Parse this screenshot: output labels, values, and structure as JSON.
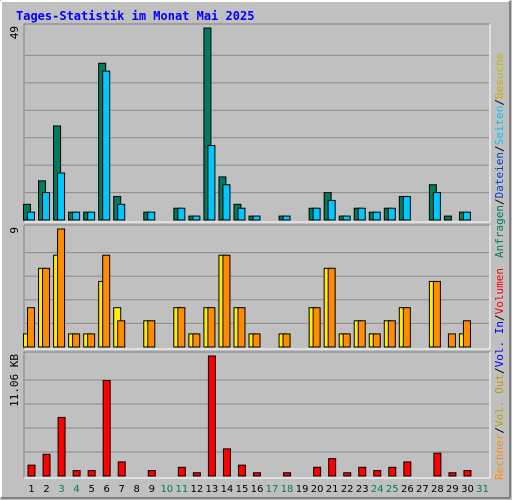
{
  "title": "Tages-Statistik im Monat Mai 2025",
  "colors": {
    "background": "#c0c0c0",
    "frame_dark": "#808080",
    "frame_light": "#ffffff",
    "grid": "#8a8a8a",
    "title": "#0000ff",
    "anfragen": "#007b5f",
    "dateien": "#00c8ff",
    "seiten": "#00c8ff",
    "besuche": "#ffee00",
    "rechner": "#ff8c00",
    "vol_out": "#d8c000",
    "vol_in": "#0000ff",
    "volumen": "#ff0000",
    "weekend_label": "#007b5f",
    "weekday_label": "#000000"
  },
  "right_legend": {
    "hits": [
      {
        "text": "Anfragen",
        "color": "#007b5f"
      },
      {
        "text": "Dateien",
        "color": "#0044cc"
      },
      {
        "text": "Seiten",
        "color": "#00c8ff"
      },
      {
        "text": "Besuche",
        "color": "#c8b400"
      }
    ],
    "visits": [
      {
        "text": "Rechner",
        "color": "#ff8c00"
      },
      {
        "text": "Vol. Out",
        "color": "#b8a000"
      },
      {
        "text": "Vol. In",
        "color": "#0000ff"
      },
      {
        "text": "Volumen",
        "color": "#ff0000"
      }
    ]
  },
  "chart_data": [
    {
      "type": "bar",
      "panel": "hits",
      "max_label": "49",
      "ylim": [
        0,
        49
      ],
      "categories": [
        "1",
        "2",
        "3",
        "4",
        "5",
        "6",
        "7",
        "8",
        "9",
        "10",
        "11",
        "12",
        "13",
        "14",
        "15",
        "16",
        "17",
        "18",
        "19",
        "20",
        "21",
        "22",
        "23",
        "24",
        "25",
        "26",
        "27",
        "28",
        "29",
        "30",
        "31"
      ],
      "weekend": [
        3,
        4,
        10,
        11,
        17,
        18,
        24,
        25,
        31
      ],
      "series": [
        {
          "name": "Anfragen",
          "color": "#007b5f",
          "values": [
            4,
            10,
            24,
            2,
            2,
            40,
            6,
            0,
            2,
            0,
            3,
            1,
            49,
            11,
            4,
            1,
            0,
            1,
            0,
            3,
            7,
            1,
            3,
            2,
            3,
            6,
            0,
            9,
            1,
            2,
            0
          ]
        },
        {
          "name": "Dateien",
          "color": "#00c8ff",
          "values": [
            2,
            7,
            12,
            2,
            2,
            38,
            4,
            0,
            2,
            0,
            3,
            1,
            19,
            9,
            3,
            1,
            0,
            1,
            0,
            3,
            5,
            1,
            3,
            2,
            3,
            6,
            0,
            7,
            0,
            2,
            0
          ]
        }
      ]
    },
    {
      "type": "bar",
      "panel": "visits",
      "max_label": "9",
      "ylim": [
        0,
        9
      ],
      "categories": [
        "1",
        "2",
        "3",
        "4",
        "5",
        "6",
        "7",
        "8",
        "9",
        "10",
        "11",
        "12",
        "13",
        "14",
        "15",
        "16",
        "17",
        "18",
        "19",
        "20",
        "21",
        "22",
        "23",
        "24",
        "25",
        "26",
        "27",
        "28",
        "29",
        "30",
        "31"
      ],
      "series": [
        {
          "name": "Besuche",
          "color": "#ffee00",
          "values": [
            1,
            6,
            7,
            1,
            1,
            5,
            3,
            0,
            2,
            0,
            3,
            1,
            3,
            7,
            3,
            1,
            0,
            1,
            0,
            3,
            6,
            1,
            2,
            1,
            2,
            3,
            0,
            5,
            0,
            1,
            0
          ]
        },
        {
          "name": "Rechner",
          "color": "#ff8c00",
          "values": [
            3,
            6,
            9,
            1,
            1,
            7,
            2,
            0,
            2,
            0,
            3,
            1,
            3,
            7,
            3,
            1,
            0,
            1,
            0,
            3,
            6,
            1,
            2,
            1,
            2,
            3,
            0,
            5,
            1,
            2,
            0
          ]
        }
      ]
    },
    {
      "type": "bar",
      "panel": "volume",
      "max_label": "11.06 KB",
      "ylim": [
        0,
        11.06
      ],
      "categories": [
        "1",
        "2",
        "3",
        "4",
        "5",
        "6",
        "7",
        "8",
        "9",
        "10",
        "11",
        "12",
        "13",
        "14",
        "15",
        "16",
        "17",
        "18",
        "19",
        "20",
        "21",
        "22",
        "23",
        "24",
        "25",
        "26",
        "27",
        "28",
        "29",
        "30",
        "31"
      ],
      "series": [
        {
          "name": "Volumen",
          "color": "#ff0000",
          "values": [
            1.0,
            2.0,
            5.4,
            0.5,
            0.5,
            8.8,
            1.3,
            0,
            0.5,
            0,
            0.8,
            0.3,
            11.06,
            2.5,
            1.0,
            0.3,
            0,
            0.3,
            0,
            0.8,
            1.6,
            0.3,
            0.8,
            0.5,
            0.8,
            1.3,
            0,
            2.1,
            0.3,
            0.5,
            0
          ]
        }
      ]
    }
  ]
}
